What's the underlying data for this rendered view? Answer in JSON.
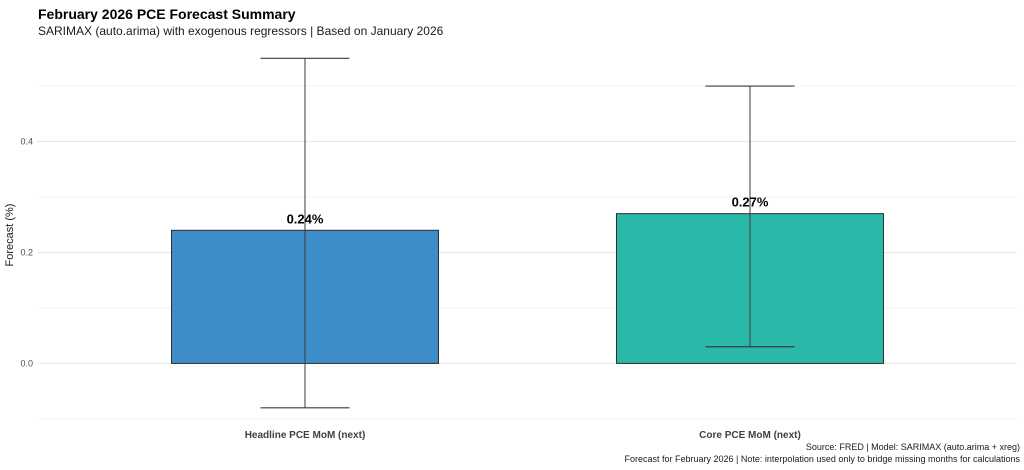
{
  "chart_data": {
    "type": "bar",
    "title": "February 2026 PCE Forecast Summary",
    "subtitle": "SARIMAX (auto.arima) with exogenous regressors | Based on January 2026",
    "ylabel": "Forecast (%)",
    "caption": [
      "Source: FRED | Model: SARIMAX (auto.arima + xreg)",
      "Forecast for February 2026 | Note: interpolation used only to bridge missing months for calculations"
    ],
    "categories": [
      "Headline PCE MoM (next)",
      "Core PCE MoM (next)"
    ],
    "values": [
      0.24,
      0.27
    ],
    "value_labels": [
      "0.24%",
      "0.27%"
    ],
    "error_low": [
      -0.08,
      0.03
    ],
    "error_high": [
      0.55,
      0.5
    ],
    "bar_colors": [
      "#3d8dc9",
      "#2ab8a8"
    ],
    "ylim": [
      -0.102,
      0.565
    ],
    "ytick_values": [
      0.0,
      0.2,
      0.4
    ],
    "ytick_labels": [
      "0.0",
      "0.2",
      "0.4"
    ],
    "gridlines_major": [
      0.0,
      0.2,
      0.4
    ],
    "gridlines_minor": [
      -0.1,
      0.1,
      0.3,
      0.5
    ],
    "grid": true,
    "legend": false,
    "colors": {
      "grid_major": "#e7e7e7",
      "grid_minor": "#f3f3f3",
      "bar_stroke": "#2f2f2f",
      "errorbar": "#3a3a3a",
      "tick_text": "#4d4d4d",
      "category_text": "#404040",
      "value_text": "#000000"
    }
  }
}
